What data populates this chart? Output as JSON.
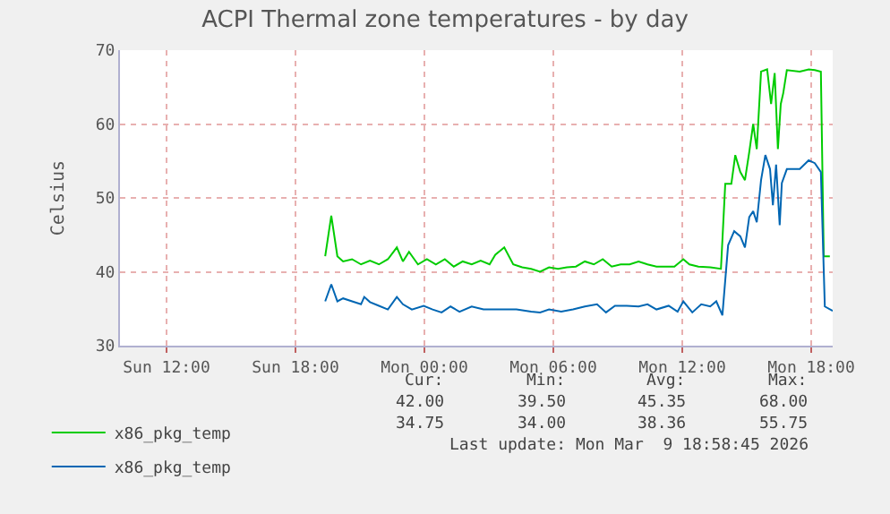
{
  "chart_data": {
    "type": "line",
    "title": "ACPI Thermal zone temperatures - by day",
    "ylabel": "Celsius",
    "xlim": [
      "2026-03-08T09:50",
      "2026-03-09T19:00"
    ],
    "xticks": [
      {
        "value": "2026-03-08T12:00",
        "label": "Sun 12:00"
      },
      {
        "value": "2026-03-08T18:00",
        "label": "Sun 18:00"
      },
      {
        "value": "2026-03-09T00:00",
        "label": "Mon 00:00"
      },
      {
        "value": "2026-03-09T06:00",
        "label": "Mon 06:00"
      },
      {
        "value": "2026-03-09T12:00",
        "label": "Mon 12:00"
      },
      {
        "value": "2026-03-09T18:00",
        "label": "Mon 18:00"
      }
    ],
    "ylim": [
      30,
      70
    ],
    "yticks": [
      30,
      40,
      50,
      60,
      70
    ],
    "grid": true,
    "legend": "bottom left",
    "marker": "none",
    "line_style": "solid",
    "series": [
      {
        "name": "x86_pkg_temp",
        "color": "#00cc00",
        "x": [
          "2026-03-08T19:23",
          "2026-03-08T19:40",
          "2026-03-08T19:57",
          "2026-03-08T20:13",
          "2026-03-08T20:38",
          "2026-03-08T21:03",
          "2026-03-08T21:28",
          "2026-03-08T21:53",
          "2026-03-08T22:18",
          "2026-03-08T22:43",
          "2026-03-08T23:00",
          "2026-03-08T23:17",
          "2026-03-08T23:42",
          "2026-03-09T00:07",
          "2026-03-09T00:32",
          "2026-03-09T00:57",
          "2026-03-09T01:22",
          "2026-03-09T01:47",
          "2026-03-09T02:12",
          "2026-03-09T02:37",
          "2026-03-09T03:02",
          "2026-03-09T03:18",
          "2026-03-09T03:43",
          "2026-03-09T04:08",
          "2026-03-09T04:33",
          "2026-03-09T04:58",
          "2026-03-09T05:23",
          "2026-03-09T05:48",
          "2026-03-09T06:13",
          "2026-03-09T06:38",
          "2026-03-09T07:03",
          "2026-03-09T07:28",
          "2026-03-09T07:53",
          "2026-03-09T08:18",
          "2026-03-09T08:43",
          "2026-03-09T09:08",
          "2026-03-09T09:33",
          "2026-03-09T09:58",
          "2026-03-09T10:23",
          "2026-03-09T10:48",
          "2026-03-09T11:38",
          "2026-03-09T12:03",
          "2026-03-09T12:20",
          "2026-03-09T12:45",
          "2026-03-09T13:18",
          "2026-03-09T13:48",
          "2026-03-09T14:00",
          "2026-03-09T14:17",
          "2026-03-09T14:28",
          "2026-03-09T14:42",
          "2026-03-09T14:55",
          "2026-03-09T15:07",
          "2026-03-09T15:18",
          "2026-03-09T15:28",
          "2026-03-09T15:40",
          "2026-03-09T15:57",
          "2026-03-09T16:08",
          "2026-03-09T16:18",
          "2026-03-09T16:27",
          "2026-03-09T16:35",
          "2026-03-09T16:42",
          "2026-03-09T16:52",
          "2026-03-09T17:28",
          "2026-03-09T17:53",
          "2026-03-09T18:10",
          "2026-03-09T18:27",
          "2026-03-09T18:35",
          "2026-03-09T18:52"
        ],
        "values": [
          42.1,
          47.6,
          42.1,
          41.4,
          41.7,
          41.0,
          41.5,
          41.0,
          41.7,
          43.3,
          41.4,
          42.7,
          41.0,
          41.7,
          41.0,
          41.7,
          40.7,
          41.4,
          41.0,
          41.5,
          41.0,
          42.3,
          43.3,
          41.0,
          40.6,
          40.4,
          40.0,
          40.6,
          40.4,
          40.6,
          40.7,
          41.4,
          41.0,
          41.7,
          40.7,
          41.0,
          41.0,
          41.4,
          41.0,
          40.7,
          40.7,
          41.7,
          41.0,
          40.7,
          40.6,
          40.4,
          51.9,
          51.9,
          55.8,
          53.5,
          52.4,
          56.2,
          60.0,
          56.6,
          67.1,
          67.4,
          62.7,
          66.9,
          56.6,
          62.7,
          64.2,
          67.3,
          67.1,
          67.4,
          67.3,
          67.1,
          42.1,
          42.1
        ]
      },
      {
        "name": "x86_pkg_temp",
        "color": "#0066b3",
        "x": [
          "2026-03-08T19:23",
          "2026-03-08T19:40",
          "2026-03-08T19:57",
          "2026-03-08T20:13",
          "2026-03-08T20:38",
          "2026-03-08T21:03",
          "2026-03-08T21:12",
          "2026-03-08T21:28",
          "2026-03-08T21:53",
          "2026-03-08T22:18",
          "2026-03-08T22:43",
          "2026-03-08T23:00",
          "2026-03-08T23:25",
          "2026-03-08T23:58",
          "2026-03-09T00:23",
          "2026-03-09T00:48",
          "2026-03-09T01:13",
          "2026-03-09T01:38",
          "2026-03-09T02:12",
          "2026-03-09T02:45",
          "2026-03-09T03:35",
          "2026-03-09T04:17",
          "2026-03-09T04:58",
          "2026-03-09T05:23",
          "2026-03-09T05:48",
          "2026-03-09T06:22",
          "2026-03-09T06:55",
          "2026-03-09T07:28",
          "2026-03-09T08:02",
          "2026-03-09T08:27",
          "2026-03-09T08:52",
          "2026-03-09T09:25",
          "2026-03-09T09:58",
          "2026-03-09T10:23",
          "2026-03-09T10:48",
          "2026-03-09T11:22",
          "2026-03-09T11:47",
          "2026-03-09T12:03",
          "2026-03-09T12:28",
          "2026-03-09T12:53",
          "2026-03-09T13:18",
          "2026-03-09T13:35",
          "2026-03-09T13:52",
          "2026-03-09T14:08",
          "2026-03-09T14:25",
          "2026-03-09T14:42",
          "2026-03-09T14:55",
          "2026-03-09T15:07",
          "2026-03-09T15:18",
          "2026-03-09T15:28",
          "2026-03-09T15:40",
          "2026-03-09T15:52",
          "2026-03-09T16:05",
          "2026-03-09T16:13",
          "2026-03-09T16:22",
          "2026-03-09T16:32",
          "2026-03-09T16:38",
          "2026-03-09T16:52",
          "2026-03-09T17:28",
          "2026-03-09T17:53",
          "2026-03-09T18:10",
          "2026-03-09T18:27",
          "2026-03-09T18:38",
          "2026-03-09T19:00"
        ],
        "values": [
          36.0,
          38.3,
          36.0,
          36.4,
          36.0,
          35.6,
          36.6,
          35.9,
          35.4,
          34.9,
          36.6,
          35.6,
          34.9,
          35.4,
          34.9,
          34.5,
          35.3,
          34.6,
          35.3,
          34.9,
          34.9,
          34.9,
          34.6,
          34.5,
          34.9,
          34.6,
          34.9,
          35.3,
          35.6,
          34.5,
          35.4,
          35.4,
          35.3,
          35.6,
          34.9,
          35.4,
          34.6,
          36.0,
          34.5,
          35.6,
          35.3,
          36.0,
          34.1,
          43.6,
          45.5,
          44.8,
          43.3,
          47.4,
          48.2,
          46.7,
          52.4,
          55.8,
          53.9,
          49.0,
          54.5,
          46.3,
          52.0,
          53.9,
          53.9,
          55.1,
          54.7,
          53.5,
          35.3,
          34.7
        ]
      }
    ],
    "annotations": [
      "Cur:",
      "Min:",
      "Avg:",
      "Max:",
      "42.00",
      "39.50",
      "45.35",
      "68.00",
      "34.75",
      "34.00",
      "38.36",
      "55.75",
      "Last update: Mon Mar  9 18:58:45 2026"
    ]
  }
}
